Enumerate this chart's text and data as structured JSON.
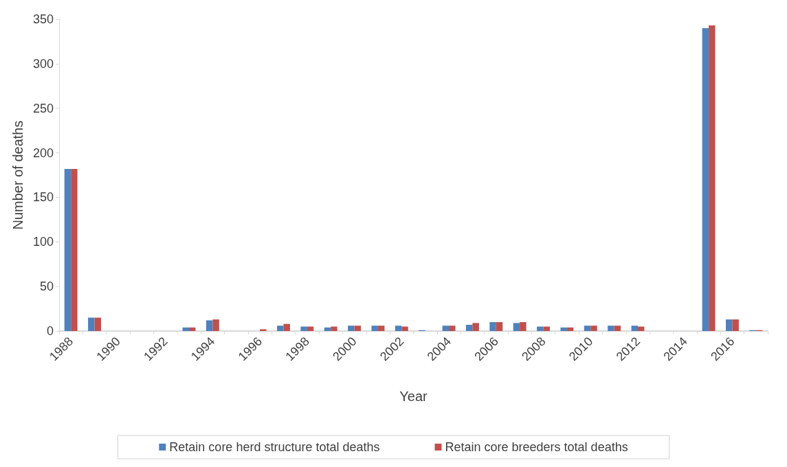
{
  "chart_data": {
    "type": "bar",
    "xlabel": "Year",
    "ylabel": "Number of deaths",
    "categories": [
      "1988",
      null,
      "1990",
      null,
      "1992",
      null,
      "1994",
      null,
      "1996",
      null,
      "1998",
      null,
      "2000",
      null,
      "2002",
      null,
      "2004",
      null,
      "2006",
      null,
      "2008",
      null,
      "2010",
      null,
      "2012",
      null,
      "2014",
      null,
      "2016",
      null
    ],
    "series": [
      {
        "name": "Retain core herd structure total deaths",
        "color": "#4f81bd",
        "values": [
          182,
          15,
          0,
          0,
          0,
          4,
          12,
          0,
          0,
          6,
          5,
          4,
          6,
          6,
          6,
          1,
          6,
          7,
          10,
          9,
          5,
          4,
          6,
          6,
          6,
          0,
          0,
          340,
          13,
          1
        ]
      },
      {
        "name": "Retain core breeders total deaths",
        "color": "#c0504d",
        "values": [
          182,
          15,
          0,
          0,
          0,
          4,
          13,
          0,
          2,
          8,
          5,
          5,
          6,
          6,
          5,
          0,
          6,
          9,
          10,
          10,
          5,
          4,
          6,
          6,
          5,
          0,
          0,
          343,
          13,
          1
        ]
      }
    ],
    "ylim": [
      0,
      350
    ],
    "yticks": [
      0,
      50,
      100,
      150,
      200,
      250,
      300,
      350
    ],
    "grid": false,
    "legend": "bottom"
  }
}
